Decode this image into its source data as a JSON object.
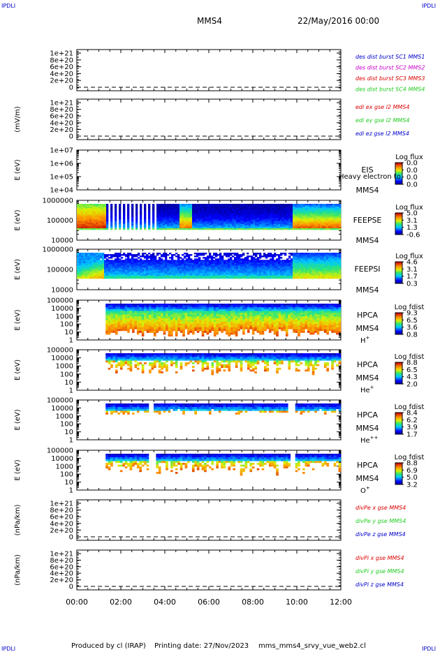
{
  "header": {
    "corner_label": "IPDLI",
    "spacecraft": "MMS4",
    "datetime": "22/May/2016 00:00"
  },
  "footer": {
    "producer": "Produced by cl (IRAP)",
    "printing_date": "Printing date: 27/Nov/2023",
    "script": "mms_mms4_srvy_vue_web2.cl"
  },
  "time_axis": {
    "ticks": [
      "00:00",
      "02:00",
      "04:00",
      "06:00",
      "08:00",
      "10:00",
      "12:00"
    ],
    "range_hours": [
      0,
      12
    ]
  },
  "colors": {
    "blue": "#0000cc",
    "green": "#22cc22",
    "red": "#dd0000",
    "magenta": "#cc00cc"
  },
  "panels": [
    {
      "id": "des",
      "ylabel": "",
      "ticks": [
        "1e+21",
        "8e+20",
        "6e+20",
        "4e+20",
        "2e+20",
        "0"
      ],
      "legend": [
        {
          "text": "des dist burst SC1 MMS1",
          "color": "#0000cc"
        },
        {
          "text": "des dist burst SC2 MMS2",
          "color": "#cc00cc"
        },
        {
          "text": "des dist burst SC3 MMS3",
          "color": "#dd0000"
        },
        {
          "text": "des dist burst SC4 MMS4",
          "color": "#22cc22"
        }
      ]
    },
    {
      "id": "edi",
      "ylabel": "(mV/m)",
      "ticks": [
        "1e+21",
        "8e+20",
        "6e+20",
        "4e+20",
        "2e+20",
        "0"
      ],
      "legend": [
        {
          "text": "edi ex gse l2 MMS4",
          "color": "#dd0000"
        },
        {
          "text": "edi ey gse l2 MMS4",
          "color": "#22cc22"
        },
        {
          "text": "edi ez gse l2 MMS4",
          "color": "#0000cc"
        }
      ]
    },
    {
      "id": "eis",
      "ylabel": "E (eV)",
      "ticks": [
        "1e+07",
        "1e+06",
        "1e+05",
        "1e+04"
      ],
      "name": "EIS",
      "sc": "MMS4",
      "overlay": "Heavy electron to",
      "cbar_title": "Log flux",
      "cbar_ticks": [
        "0.0",
        "0.0",
        "0.0",
        "0.0"
      ]
    },
    {
      "id": "feepse",
      "ylabel": "E (eV)",
      "ticks": [
        "1000000",
        "100000",
        "10000"
      ],
      "name": "FEEPSE",
      "sc": "MMS4",
      "cbar_title": "Log flux",
      "cbar_ticks": [
        "5.0",
        "3.1",
        "1.3",
        "-0.6"
      ]
    },
    {
      "id": "feepsi",
      "ylabel": "E (eV)",
      "ticks": [
        "1000000",
        "100000",
        "10000"
      ],
      "name": "FEEPSI",
      "sc": "MMS4",
      "cbar_title": "Log flux",
      "cbar_ticks": [
        "4.6",
        "3.1",
        "1.7",
        "0.3"
      ]
    },
    {
      "id": "hpca_h",
      "ylabel": "E (eV)",
      "ticks": [
        "100000",
        "10000",
        "1000",
        "100",
        "10",
        "1"
      ],
      "name": "HPCA",
      "sc": "MMS4",
      "species": "H",
      "species_sup": "+",
      "cbar_title": "Log fdist",
      "cbar_ticks": [
        "9.3",
        "6.5",
        "3.6",
        "0.8"
      ]
    },
    {
      "id": "hpca_he",
      "ylabel": "E (eV)",
      "ticks": [
        "100000",
        "10000",
        "1000",
        "100",
        "10",
        "1"
      ],
      "name": "HPCA",
      "sc": "MMS4",
      "species": "He",
      "species_sup": "+",
      "cbar_title": "Log fdist",
      "cbar_ticks": [
        "8.8",
        "6.5",
        "4.3",
        "2.0"
      ]
    },
    {
      "id": "hpca_hepp",
      "ylabel": "E (eV)",
      "ticks": [
        "100000",
        "10000",
        "1000",
        "100",
        "10",
        "1"
      ],
      "name": "HPCA",
      "sc": "MMS4",
      "species": "He",
      "species_sup": "++",
      "cbar_title": "Log fdist",
      "cbar_ticks": [
        "8.4",
        "6.2",
        "3.9",
        "1.7"
      ]
    },
    {
      "id": "hpca_o",
      "ylabel": "E (eV)",
      "ticks": [
        "100000",
        "10000",
        "1000",
        "100",
        "10",
        "1"
      ],
      "name": "HPCA",
      "sc": "MMS4",
      "species": "O",
      "species_sup": "+",
      "cbar_title": "Log fdist",
      "cbar_ticks": [
        "8.8",
        "6.9",
        "5.0",
        "3.2"
      ]
    },
    {
      "id": "divpe",
      "ylabel": "(nPa/km)",
      "ticks": [
        "1e+21",
        "8e+20",
        "6e+20",
        "4e+20",
        "2e+20",
        "0"
      ],
      "legend": [
        {
          "text": "divPe x gse MMS4",
          "color": "#dd0000"
        },
        {
          "text": "divPe y gse MMS4",
          "color": "#22cc22"
        },
        {
          "text": "divPe z gse MMS4",
          "color": "#0000cc"
        }
      ]
    },
    {
      "id": "divpi",
      "ylabel": "(nPa/km)",
      "ticks": [
        "1e+21",
        "8e+20",
        "6e+20",
        "4e+20",
        "2e+20",
        "0"
      ],
      "legend": [
        {
          "text": "divPi x gse MMS4",
          "color": "#dd0000"
        },
        {
          "text": "divPi y gse MMS4",
          "color": "#22cc22"
        },
        {
          "text": "divPi z gse MMS4",
          "color": "#0000cc"
        }
      ]
    }
  ],
  "chart_data": {
    "type": "heatmap",
    "title": "MMS4 22/May/2016 00:00",
    "x_unit": "hours",
    "xlim": [
      0,
      12
    ],
    "spectrograms": [
      {
        "panel": "feepse",
        "coverage_hours": [
          0,
          12
        ],
        "burst_stripes_hours": [
          1.3,
          3.6
        ],
        "enhancements_hours": [
          [
            4.7,
            5.2
          ],
          [
            9.8,
            12
          ]
        ]
      },
      {
        "panel": "feepsi",
        "coverage_hours": [
          0,
          12
        ],
        "enhancements_hours": [
          [
            0,
            1.2
          ],
          [
            9.8,
            12
          ]
        ]
      },
      {
        "panel": "hpca_h",
        "coverage_hours": [
          1.3,
          12
        ]
      },
      {
        "panel": "hpca_he",
        "coverage_hours": [
          1.3,
          12
        ]
      },
      {
        "panel": "hpca_hepp",
        "coverage_hours": [
          1.3,
          12
        ],
        "gaps_hours": [
          [
            3.3,
            3.5
          ],
          [
            9.6,
            9.9
          ]
        ]
      },
      {
        "panel": "hpca_o",
        "coverage_hours": [
          1.3,
          12
        ],
        "gaps_hours": [
          [
            3.3,
            3.6
          ],
          [
            9.7,
            9.9
          ]
        ]
      }
    ],
    "line_panels_zero_level": 0
  }
}
